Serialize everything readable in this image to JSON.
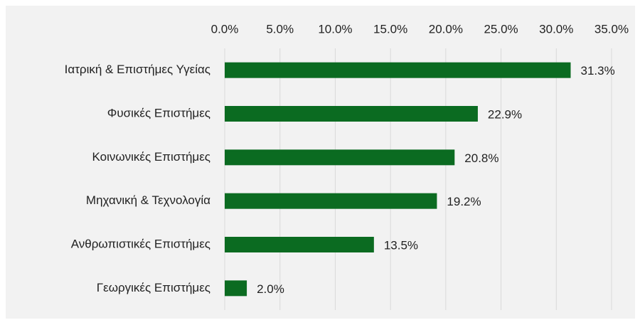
{
  "chart_data": {
    "type": "bar",
    "orientation": "horizontal",
    "categories": [
      "Ιατρική & Επιστήμες Υγείας",
      "Φυσικές Επιστήμες",
      "Κοινωνικές Επιστήμες",
      "Μηχανική & Τεχνολογία",
      "Ανθρωπιστικές Επιστήμες",
      "Γεωργικές Επιστήμες"
    ],
    "values": [
      31.3,
      22.9,
      20.8,
      19.2,
      13.5,
      2.0
    ],
    "value_labels": [
      "31.3%",
      "22.9%",
      "20.8%",
      "19.2%",
      "13.5%",
      "2.0%"
    ],
    "color": "#0b6b21",
    "xlim": [
      0,
      35
    ],
    "xticks": [
      {
        "value": 0,
        "label": "0.0%"
      },
      {
        "value": 5,
        "label": "5.0%"
      },
      {
        "value": 10,
        "label": "10.0%"
      },
      {
        "value": 15,
        "label": "15.0%"
      },
      {
        "value": 20,
        "label": "20.0%"
      },
      {
        "value": 25,
        "label": "25.0%"
      },
      {
        "value": 30,
        "label": "30.0%"
      },
      {
        "value": 35,
        "label": "35.0%"
      }
    ],
    "grid": true
  }
}
